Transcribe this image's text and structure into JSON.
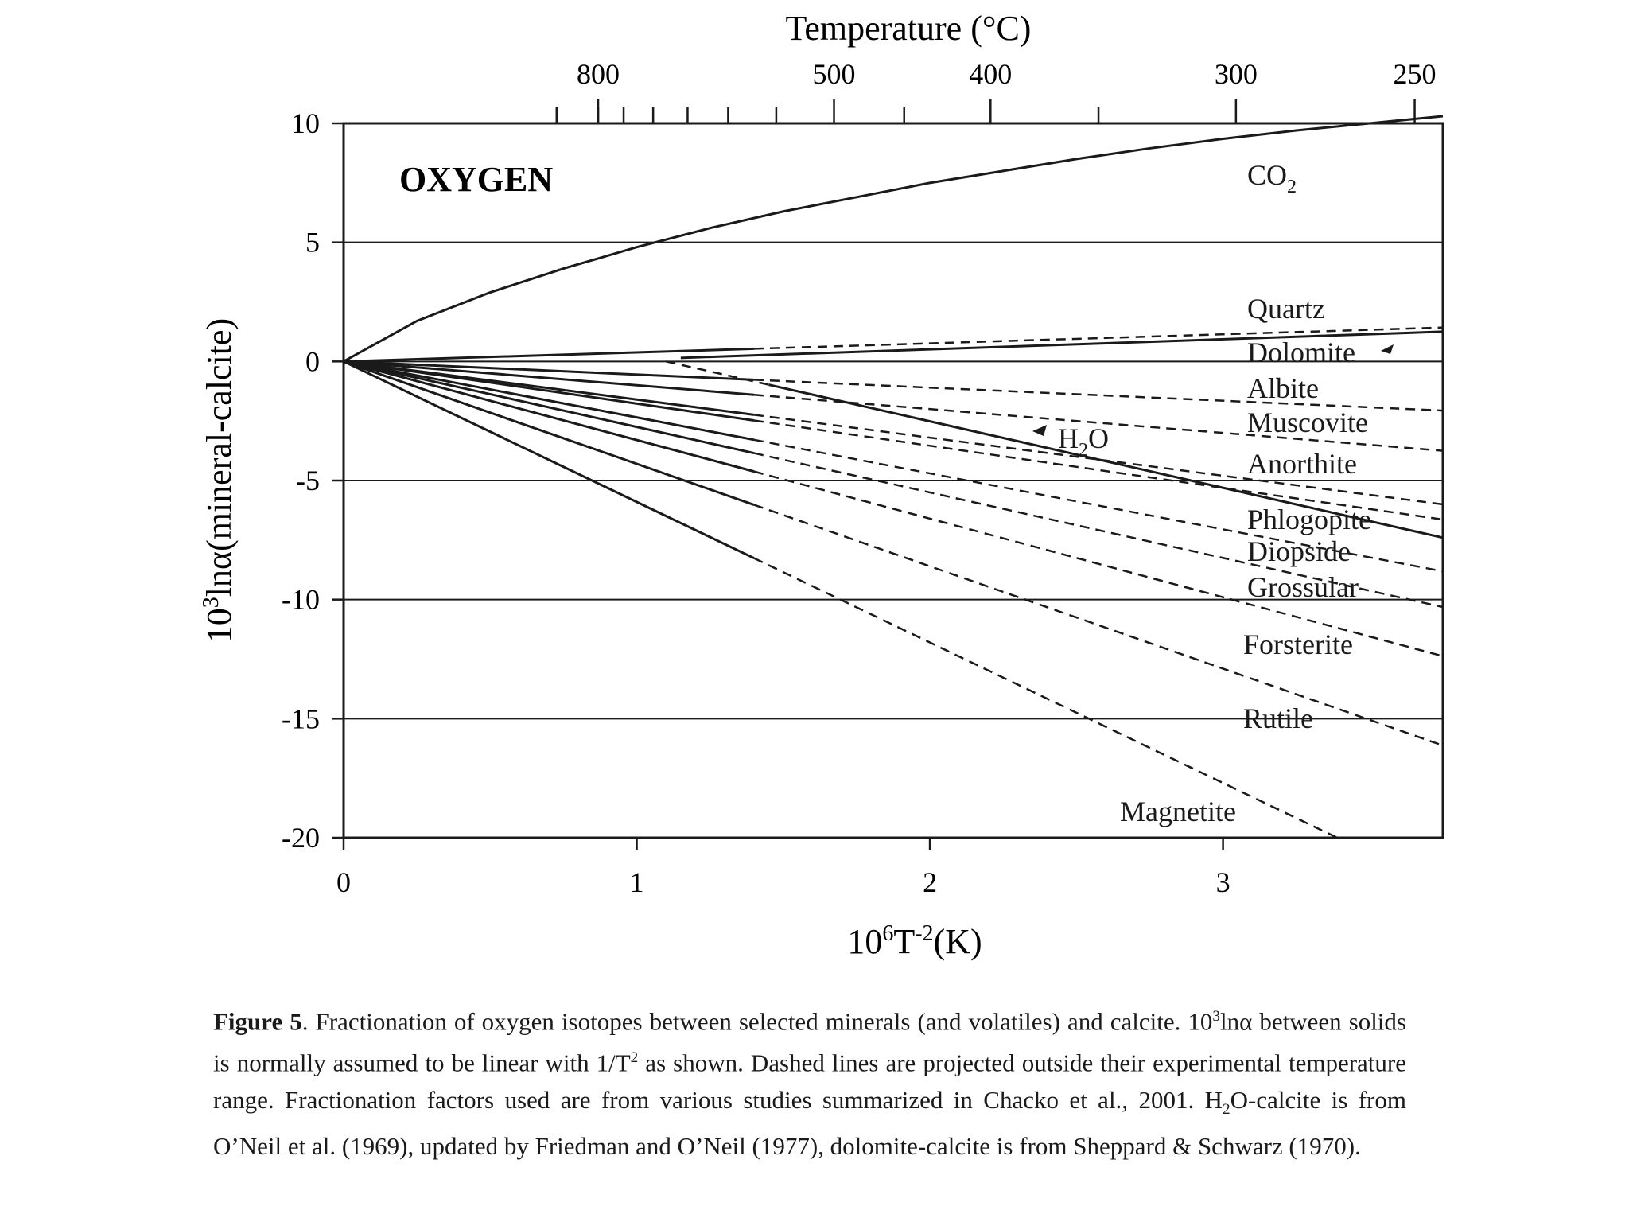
{
  "chart_data": {
    "type": "line",
    "panel_label": "OXYGEN",
    "top_axis": {
      "title": "Temperature (°C)",
      "labeled_ticks": [
        "800",
        "500",
        "400",
        "300",
        "250"
      ],
      "labeled_tick_temps_C": [
        800,
        500,
        400,
        300,
        250
      ],
      "minor_tick_temps_C": [
        900,
        800,
        750,
        700,
        650,
        600,
        550,
        450,
        350
      ]
    },
    "xaxis": {
      "label_base": "10",
      "label_sup1": "6",
      "label_mid": "T",
      "label_sup2": "-2",
      "label_tail": "(K)",
      "range": [
        0,
        3.75
      ],
      "ticks": [
        0,
        1,
        2,
        3
      ],
      "tick_labels": [
        "0",
        "1",
        "2",
        "3"
      ]
    },
    "yaxis": {
      "label_base": "10",
      "label_sup": "3",
      "label_tail": "lnα(mineral-calcite)",
      "range": [
        -20,
        10
      ],
      "ticks": [
        10,
        5,
        0,
        -5,
        -10,
        -15,
        -20
      ],
      "tick_labels": [
        "10",
        "5",
        "0",
        "-5",
        "-10",
        "-15",
        "-20"
      ],
      "gridlines": [
        5,
        0,
        -5,
        -10,
        -15
      ]
    },
    "series": [
      {
        "name": "CO2",
        "label_main": "CO",
        "label_sub": "2",
        "kind": "curve",
        "points": [
          [
            0,
            0
          ],
          [
            0.25,
            1.7
          ],
          [
            0.5,
            2.9
          ],
          [
            0.75,
            3.9
          ],
          [
            1.0,
            4.8
          ],
          [
            1.25,
            5.6
          ],
          [
            1.5,
            6.3
          ],
          [
            1.75,
            6.9
          ],
          [
            2.0,
            7.5
          ],
          [
            2.25,
            8.0
          ],
          [
            2.5,
            8.5
          ],
          [
            2.75,
            8.95
          ],
          [
            3.0,
            9.35
          ],
          [
            3.25,
            9.7
          ],
          [
            3.5,
            10.0
          ],
          [
            3.75,
            10.3
          ]
        ]
      },
      {
        "name": "Quartz",
        "kind": "linear",
        "slope": 0.38,
        "solid_to": 1.4,
        "x_end": 3.75
      },
      {
        "name": "Dolomite",
        "kind": "segment",
        "x_start": 1.15,
        "x_end": 3.75,
        "y_start": 0.15,
        "y_end": 1.25
      },
      {
        "name": "Albite",
        "kind": "linear",
        "slope": -0.55,
        "solid_to": 1.4,
        "x_end": 3.75
      },
      {
        "name": "H2O",
        "label_main": "H",
        "label_sub": "2",
        "label_tail": "O",
        "kind": "segment_dashed_then_solid",
        "x_start": 1.1,
        "x_solid": 1.45,
        "x_end": 3.75,
        "y_start": 0.0,
        "y_end": -7.4
      },
      {
        "name": "Muscovite",
        "kind": "linear",
        "slope": -1.0,
        "solid_to": 1.4,
        "x_end": 3.75
      },
      {
        "name": "Anorthite",
        "kind": "linear",
        "slope": -1.6,
        "solid_to": 1.4,
        "x_end": 3.75
      },
      {
        "name": "Phlogopite",
        "kind": "linear",
        "slope": -1.77,
        "solid_to": 1.4,
        "x_end": 3.75
      },
      {
        "name": "Diopside",
        "kind": "linear",
        "slope": -2.35,
        "solid_to": 1.4,
        "x_end": 3.75
      },
      {
        "name": "Grossular",
        "kind": "linear",
        "slope": -2.75,
        "solid_to": 1.4,
        "x_end": 3.75
      },
      {
        "name": "Forsterite",
        "kind": "linear",
        "slope": -3.3,
        "solid_to": 1.4,
        "x_end": 3.75
      },
      {
        "name": "Rutile",
        "kind": "linear",
        "slope": -4.3,
        "solid_to": 1.4,
        "x_end": 3.75
      },
      {
        "name": "Magnetite",
        "kind": "linear",
        "slope": -5.9,
        "solid_to": 1.4,
        "x_end": 3.4
      }
    ]
  },
  "caption": {
    "fig_label": "Figure 5",
    "p1": ".  Fractionation of oxygen isotopes between selected minerals (and volatiles) and calcite.  10",
    "sup1": "3",
    "p2": "lnα between solids is normally assumed to be linear with 1/T",
    "sup2": "2",
    "p3": " as shown.  Dashed lines are projected outside their experimental temperature range.  Fractionation factors used are from various studies summarized in Chacko et al., 2001.  H",
    "sub1": "2",
    "p4": "O-calcite is from O’Neil et al. (1969), updated by Friedman and O’Neil (1977), dolomite-calcite is from Sheppard & Schwarz (1970)."
  }
}
